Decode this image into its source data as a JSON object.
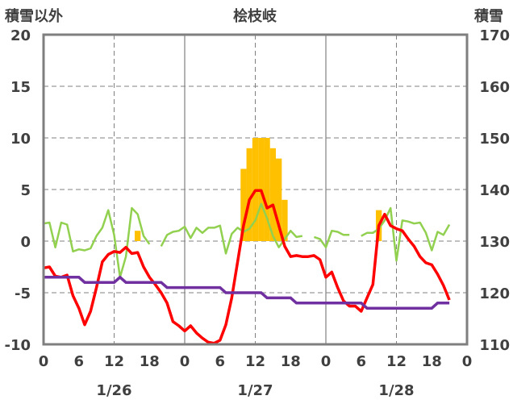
{
  "chart_data": {
    "type": "line",
    "title": "桧枝岐",
    "left_axis_label": "積雪以外",
    "right_axis_label": "積雪",
    "left_ylim": [
      -10,
      20
    ],
    "right_ylim": [
      110,
      170
    ],
    "left_ticks": [
      "20",
      "15",
      "10",
      "5",
      "0",
      "-5",
      "-10"
    ],
    "right_ticks": [
      "170",
      "160",
      "150",
      "140",
      "130",
      "120",
      "110"
    ],
    "x_range_hours": [
      0,
      72
    ],
    "x_tick_labels": [
      "0",
      "6",
      "12",
      "18",
      "0",
      "6",
      "12",
      "18",
      "0",
      "6",
      "12",
      "18",
      "0"
    ],
    "date_labels": [
      "1/26",
      "1/27",
      "1/28"
    ],
    "grid": "dashed vertical lines at hour 12, solid day separators, dashed horizontal lines",
    "colors": {
      "precipitation": "#FFC000",
      "temperature": "#FF0000",
      "wind": "#92D050",
      "snow_depth": "#7030A0"
    },
    "series": [
      {
        "key": "precipitation",
        "axis": "left",
        "bars": [
          {
            "x": 16,
            "y": 1
          },
          {
            "x": 34,
            "y": 7
          },
          {
            "x": 35,
            "y": 9
          },
          {
            "x": 36,
            "y": 10
          },
          {
            "x": 37,
            "y": 10
          },
          {
            "x": 38,
            "y": 10
          },
          {
            "x": 39,
            "y": 9
          },
          {
            "x": 40,
            "y": 8
          },
          {
            "x": 41,
            "y": 4
          },
          {
            "x": 57,
            "y": 3
          }
        ]
      },
      {
        "key": "temperature",
        "axis": "left",
        "points": [
          [
            0,
            -2.6
          ],
          [
            1,
            -2.5
          ],
          [
            2,
            -3.4
          ],
          [
            3,
            -3.5
          ],
          [
            4,
            -3.3
          ],
          [
            5,
            -5.3
          ],
          [
            6,
            -6.5
          ],
          [
            7,
            -8.1
          ],
          [
            8,
            -6.8
          ],
          [
            9,
            -4.5
          ],
          [
            10,
            -2
          ],
          [
            11,
            -1.3
          ],
          [
            12,
            -1
          ],
          [
            13,
            -1.1
          ],
          [
            14,
            -0.6
          ],
          [
            15,
            -1.2
          ],
          [
            16,
            -1.1
          ],
          [
            17,
            -2.5
          ],
          [
            18,
            -3.5
          ],
          [
            19,
            -4.2
          ],
          [
            20,
            -5
          ],
          [
            21,
            -6
          ],
          [
            22,
            -7.8
          ],
          [
            23,
            -8.2
          ],
          [
            24,
            -8.7
          ],
          [
            25,
            -8.2
          ],
          [
            26,
            -8.9
          ],
          [
            27,
            -9.4
          ],
          [
            28,
            -9.8
          ],
          [
            29,
            -9.9
          ],
          [
            30,
            -9.6
          ],
          [
            31,
            -8.1
          ],
          [
            32,
            -5.5
          ],
          [
            33,
            -2
          ],
          [
            34,
            1.5
          ],
          [
            35,
            4
          ],
          [
            36,
            4.9
          ],
          [
            37,
            4.9
          ],
          [
            38,
            3.2
          ],
          [
            39,
            3.5
          ],
          [
            40,
            1.5
          ],
          [
            41,
            -0.5
          ],
          [
            42,
            -1.5
          ],
          [
            43,
            -1.4
          ],
          [
            44,
            -1.5
          ],
          [
            45,
            -1.5
          ],
          [
            46,
            -1.4
          ],
          [
            47,
            -1.8
          ],
          [
            48,
            -3.5
          ],
          [
            49,
            -3
          ],
          [
            50,
            -4.5
          ],
          [
            51,
            -5.8
          ],
          [
            52,
            -6.3
          ],
          [
            53,
            -6.3
          ],
          [
            54,
            -6.8
          ],
          [
            55,
            -5.5
          ],
          [
            56,
            -4.2
          ],
          [
            57,
            1.5
          ],
          [
            58,
            2.6
          ],
          [
            59,
            1.5
          ],
          [
            60,
            1.2
          ],
          [
            61,
            1
          ],
          [
            62,
            0.2
          ],
          [
            63,
            -0.5
          ],
          [
            64,
            -1.5
          ],
          [
            65,
            -2.1
          ],
          [
            66,
            -2.3
          ],
          [
            67,
            -3.2
          ],
          [
            68,
            -4.3
          ],
          [
            69,
            -5.7
          ]
        ]
      },
      {
        "key": "wind",
        "axis": "left",
        "points": [
          [
            0,
            1.7
          ],
          [
            1,
            1.8
          ],
          [
            2,
            -0.6
          ],
          [
            3,
            1.8
          ],
          [
            4,
            1.6
          ],
          [
            5,
            -1
          ],
          [
            6,
            -0.8
          ],
          [
            7,
            -0.9
          ],
          [
            8,
            -0.7
          ],
          [
            9,
            0.5
          ],
          [
            10,
            1.3
          ],
          [
            11,
            3
          ],
          [
            12,
            0.6
          ],
          [
            13,
            -3.5
          ],
          [
            14,
            -1.5
          ],
          [
            15,
            3.2
          ],
          [
            16,
            2.6
          ],
          [
            17,
            0.5
          ],
          [
            18,
            -0.3
          ],
          [
            null,
            null
          ],
          [
            20,
            -0.5
          ],
          [
            21,
            0.6
          ],
          [
            22,
            0.9
          ],
          [
            23,
            1
          ],
          [
            24,
            1.4
          ],
          [
            25,
            0.3
          ],
          [
            26,
            1.3
          ],
          [
            27,
            0.8
          ],
          [
            28,
            1.3
          ],
          [
            29,
            1.3
          ],
          [
            30,
            1.5
          ],
          [
            31,
            -1.2
          ],
          [
            32,
            0.7
          ],
          [
            33,
            1.3
          ],
          [
            34,
            0.9
          ],
          [
            35,
            1.2
          ],
          [
            36,
            2
          ],
          [
            37,
            3.6
          ],
          [
            38,
            2.2
          ],
          [
            39,
            0.5
          ],
          [
            40,
            -0.6
          ],
          [
            41,
            0.2
          ],
          [
            42,
            1
          ],
          [
            43,
            0.4
          ],
          [
            44,
            0.5
          ],
          [
            null,
            null
          ],
          [
            46,
            0.4
          ],
          [
            47,
            0.2
          ],
          [
            48,
            -0.6
          ],
          [
            49,
            1
          ],
          [
            50,
            0.9
          ],
          [
            51,
            0.6
          ],
          [
            52,
            0.6
          ],
          [
            null,
            null
          ],
          [
            54,
            0.5
          ],
          [
            55,
            0.8
          ],
          [
            56,
            0.8
          ],
          [
            57,
            1.2
          ],
          [
            58,
            2
          ],
          [
            59,
            3.2
          ],
          [
            60,
            -1.9
          ],
          [
            61,
            2
          ],
          [
            62,
            1.9
          ],
          [
            63,
            1.7
          ],
          [
            64,
            1.8
          ],
          [
            65,
            0.8
          ],
          [
            66,
            -0.9
          ],
          [
            67,
            0.9
          ],
          [
            68,
            0.6
          ],
          [
            69,
            1.6
          ]
        ]
      },
      {
        "key": "snow_depth",
        "axis": "right",
        "points": [
          [
            0,
            123
          ],
          [
            6,
            123
          ],
          [
            7,
            122
          ],
          [
            12,
            122
          ],
          [
            13,
            123
          ],
          [
            14,
            122
          ],
          [
            17,
            122
          ],
          [
            20,
            122
          ],
          [
            21,
            121
          ],
          [
            30,
            121
          ],
          [
            31,
            120
          ],
          [
            37,
            120
          ],
          [
            38,
            119
          ],
          [
            42,
            119
          ],
          [
            43,
            118
          ],
          [
            54,
            118
          ],
          [
            55,
            117
          ],
          [
            66,
            117
          ],
          [
            67,
            118
          ],
          [
            69,
            118
          ]
        ]
      }
    ]
  }
}
